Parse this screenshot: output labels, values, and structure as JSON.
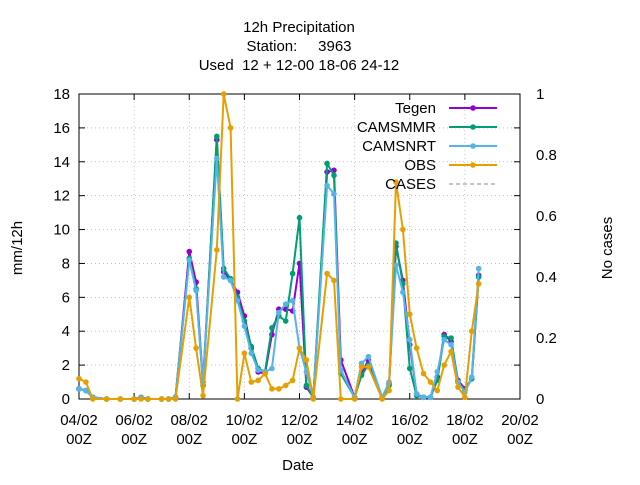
{
  "chart_data": {
    "type": "line",
    "title_lines": [
      "12h Precipitation",
      "Station:     3963",
      "Used  12 + 12-00 18-06 24-12"
    ],
    "xlabel": "Date",
    "ylabel": "mm/12h",
    "y2label": "No cases",
    "xlim": [
      0,
      32
    ],
    "ylim": [
      0,
      18
    ],
    "y2lim": [
      0,
      1
    ],
    "grid": true,
    "legend_position": "top-right",
    "x_ticks": [
      {
        "x": 0,
        "line1": "04/02",
        "line2": "00Z"
      },
      {
        "x": 4,
        "line1": "06/02",
        "line2": "00Z"
      },
      {
        "x": 8,
        "line1": "08/02",
        "line2": "00Z"
      },
      {
        "x": 12,
        "line1": "10/02",
        "line2": "00Z"
      },
      {
        "x": 16,
        "line1": "12/02",
        "line2": "00Z"
      },
      {
        "x": 20,
        "line1": "14/02",
        "line2": "00Z"
      },
      {
        "x": 24,
        "line1": "16/02",
        "line2": "00Z"
      },
      {
        "x": 28,
        "line1": "18/02",
        "line2": "00Z"
      },
      {
        "x": 32,
        "line1": "20/02",
        "line2": "00Z"
      }
    ],
    "y_ticks": [
      0,
      2,
      4,
      6,
      8,
      10,
      12,
      14,
      16,
      18
    ],
    "y2_ticks": [
      "0",
      "0.2",
      "0.4",
      "0.6",
      "0.8",
      "1"
    ],
    "series": [
      {
        "name": "Tegen",
        "color": "#9400d3",
        "x": [
          0,
          0.5,
          1,
          2,
          3,
          4,
          4.5,
          5,
          6,
          6.5,
          7,
          8,
          8.5,
          9,
          10,
          10.5,
          11,
          11.5,
          12,
          12.5,
          13,
          13.5,
          14,
          14.5,
          15,
          15.5,
          16,
          16.5,
          17,
          18,
          18.5,
          19,
          20,
          20.5,
          21,
          22,
          22.5,
          23,
          23.5,
          24,
          24.5,
          25,
          25.5,
          26,
          26.5,
          27,
          27.5,
          28,
          28.5,
          29
        ],
        "y": [
          0.6,
          0.5,
          0.1,
          0.0,
          0.0,
          0.0,
          0.1,
          0.0,
          0.0,
          0.0,
          0.1,
          8.7,
          6.9,
          1.0,
          15.3,
          7.5,
          7.0,
          6.3,
          4.9,
          3.0,
          1.6,
          1.5,
          3.8,
          5.3,
          5.3,
          5.2,
          8.0,
          0.7,
          0.1,
          13.4,
          13.5,
          2.3,
          0.1,
          1.5,
          2.3,
          0.1,
          0.9,
          9.0,
          7.0,
          3.2,
          0.3,
          0.1,
          0.1,
          1.3,
          3.8,
          3.4,
          1.1,
          0.6,
          1.2,
          7.3
        ]
      },
      {
        "name": "CAMSMMR",
        "color": "#009e73",
        "x": [
          0,
          0.5,
          1,
          2,
          3,
          4,
          4.5,
          5,
          6,
          6.5,
          7,
          8,
          8.5,
          9,
          10,
          10.5,
          11,
          11.5,
          12,
          12.5,
          13,
          13.5,
          14,
          14.5,
          15,
          15.5,
          16,
          16.5,
          17,
          18,
          18.5,
          19,
          20,
          20.5,
          21,
          22,
          22.5,
          23,
          23.5,
          24,
          24.5,
          25,
          25.5,
          26,
          26.5,
          27,
          27.5,
          28,
          28.5,
          29
        ],
        "y": [
          0.6,
          0.5,
          0.1,
          0.0,
          0.0,
          0.0,
          0.1,
          0.0,
          0.0,
          0.0,
          0.1,
          8.3,
          6.5,
          0.8,
          15.5,
          7.7,
          7.1,
          6.0,
          4.6,
          3.1,
          1.8,
          1.6,
          4.2,
          4.9,
          4.6,
          7.4,
          10.7,
          0.8,
          0.1,
          13.9,
          13.2,
          1.5,
          0.1,
          1.4,
          2.0,
          0.1,
          0.8,
          9.2,
          6.8,
          1.8,
          0.2,
          0.1,
          0.1,
          1.1,
          3.7,
          3.6,
          1.0,
          0.5,
          1.2,
          7.2
        ]
      },
      {
        "name": "CAMSNRT",
        "color": "#56b4e9",
        "x": [
          0,
          0.5,
          1,
          2,
          3,
          4,
          4.5,
          5,
          6,
          6.5,
          7,
          8,
          8.5,
          9,
          10,
          10.5,
          11,
          11.5,
          12,
          12.5,
          13,
          13.5,
          14,
          14.5,
          15,
          15.5,
          16,
          16.5,
          17,
          18,
          18.5,
          19,
          20,
          20.5,
          21,
          22,
          22.5,
          23,
          23.5,
          24,
          24.5,
          25,
          25.5,
          26,
          26.5,
          27,
          27.5,
          28,
          28.5,
          29
        ],
        "y": [
          0.6,
          0.5,
          0.1,
          0.0,
          0.0,
          0.0,
          0.1,
          0.0,
          0.0,
          0.0,
          0.1,
          8.2,
          6.4,
          1.0,
          14.2,
          7.2,
          7.0,
          5.8,
          4.3,
          2.7,
          1.7,
          1.6,
          1.8,
          5.1,
          5.6,
          5.8,
          3.0,
          1.6,
          0.1,
          12.6,
          12.1,
          1.7,
          0.1,
          2.1,
          2.5,
          0.1,
          1.0,
          7.9,
          6.3,
          3.5,
          0.3,
          0.1,
          0.1,
          1.6,
          3.5,
          3.2,
          1.0,
          0.4,
          1.3,
          7.7
        ]
      },
      {
        "name": "OBS",
        "color": "#e69f00",
        "x": [
          0,
          0.5,
          1,
          2,
          3,
          4,
          4.5,
          5,
          6,
          6.5,
          7,
          8,
          8.5,
          9,
          10,
          10.5,
          11,
          11.5,
          12,
          12.5,
          13,
          13.5,
          14,
          14.5,
          15,
          15.5,
          16,
          16.5,
          17,
          18,
          18.5,
          19,
          20,
          20.5,
          21,
          22,
          22.5,
          23,
          23.5,
          24,
          24.5,
          25,
          25.5,
          26,
          26.5,
          27,
          27.5,
          28,
          28.5,
          29
        ],
        "y": [
          1.2,
          1.0,
          0.0,
          0.0,
          0.0,
          0.0,
          0.0,
          0.0,
          0.0,
          0.0,
          0.0,
          6.0,
          3.0,
          0.2,
          8.8,
          18.0,
          16.0,
          0.0,
          2.7,
          1.0,
          1.1,
          1.5,
          0.6,
          0.6,
          0.8,
          1.1,
          3.0,
          2.3,
          0.0,
          7.4,
          7.0,
          0.0,
          0.0,
          1.9,
          1.9,
          0.0,
          0.5,
          12.8,
          10.0,
          5.0,
          3.0,
          1.5,
          1.0,
          0.5,
          2.0,
          2.8,
          0.7,
          0.1,
          4.0,
          6.8
        ]
      },
      {
        "name": "CASES",
        "color": "#a0a0a0",
        "dashed": true,
        "x": [],
        "y": []
      }
    ]
  }
}
